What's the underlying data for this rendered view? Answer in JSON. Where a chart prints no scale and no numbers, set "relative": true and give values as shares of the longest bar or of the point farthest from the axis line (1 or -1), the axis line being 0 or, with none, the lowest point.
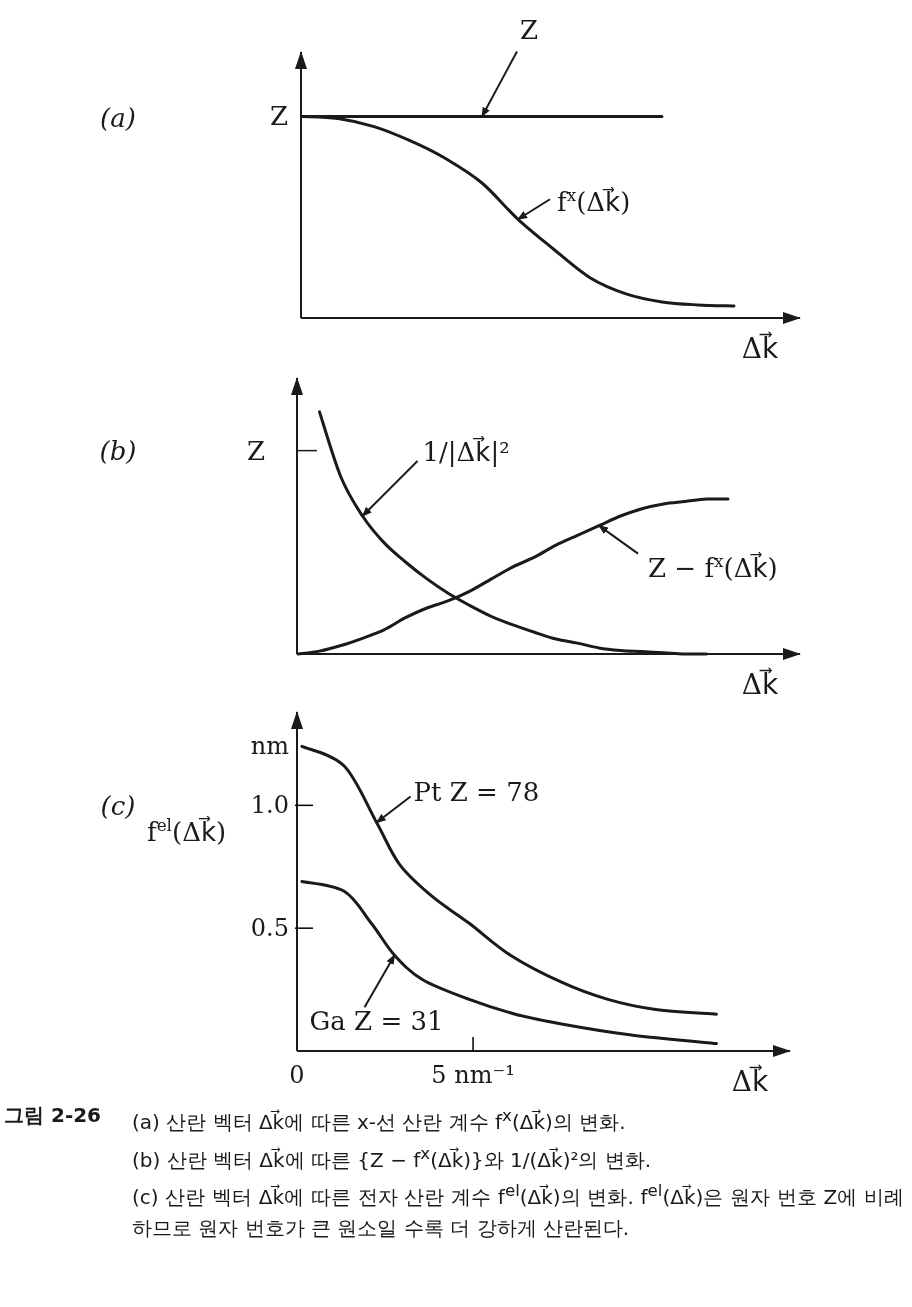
{
  "chart_data": [
    {
      "type": "line",
      "title": "(a)",
      "xlabel": "Δk⃗",
      "relative": true,
      "categories": [
        null,
        null,
        null,
        null,
        null,
        null,
        null,
        null,
        null,
        null,
        null,
        null,
        null
      ],
      "marker": "none",
      "line_style": "solid",
      "series": [
        {
          "name": "Z",
          "color": "#1a1a1a",
          "values": [
            1,
            1,
            1,
            1,
            1,
            1,
            1,
            1,
            1,
            1,
            1,
            null,
            null
          ]
        },
        {
          "name": "f$^{x}$(Δk⃗)",
          "color": "#1a1a1a",
          "values": [
            1.0,
            0.99,
            0.95,
            0.88,
            0.79,
            0.67,
            0.49,
            0.34,
            0.2,
            0.12,
            0.08,
            0.065,
            0.06
          ]
        }
      ],
      "annotations": [
        "Z"
      ]
    },
    {
      "type": "line",
      "title": "(b)",
      "xlabel": "Δk⃗",
      "relative": true,
      "categories": [
        null,
        null,
        null,
        null,
        null,
        null,
        null,
        null,
        null,
        null,
        null,
        null,
        null,
        null,
        null,
        null,
        null,
        null,
        null,
        null,
        null
      ],
      "marker": "none",
      "line_style": "solid",
      "series": [
        {
          "name": "1/|Δk⃗|²",
          "color": "#1a1a1a",
          "values": [
            null,
            1.0,
            0.73,
            0.57,
            0.46,
            0.38,
            0.31,
            0.25,
            0.2,
            0.155,
            0.12,
            0.09,
            0.062,
            0.045,
            0.025,
            0.015,
            0.01,
            0.005,
            0.0,
            0.0,
            null
          ]
        },
        {
          "name": "Z − f$^{x}$(Δk⃗)",
          "color": "#1a1a1a",
          "values": [
            0.0,
            0.012,
            0.035,
            0.065,
            0.1,
            0.15,
            0.19,
            0.22,
            0.26,
            0.31,
            0.36,
            0.4,
            0.45,
            0.49,
            0.53,
            0.57,
            0.6,
            0.62,
            0.63,
            0.64,
            0.64
          ]
        }
      ],
      "annotations": [
        "Z"
      ]
    },
    {
      "type": "line",
      "title": "(c)",
      "xlabel": "Δk⃗",
      "ylabel": "f$^{el}$(Δk⃗)",
      "xlim": [
        0,
        14
      ],
      "xticks": [
        0,
        {
          "value": 5,
          "label": "5 nm⁻¹"
        }
      ],
      "ylim": [
        0,
        1.38
      ],
      "yticks": [
        {
          "value": 0.5,
          "label": "0.5"
        },
        {
          "value": 1,
          "label": "1.0"
        },
        {
          "value": 1.24,
          "label": "nm"
        }
      ],
      "grid": false,
      "marker": "none",
      "line_style": "solid",
      "series": [
        {
          "name": "Pt Z = 78",
          "color": "#1a1a1a",
          "x": [
            0.14,
            1.34,
            2.26,
            2.91,
            3.83,
            4.89,
            6.06,
            7.51,
            8.83,
            10.14,
            11.91
          ],
          "values": [
            1.24,
            1.16,
            0.93,
            0.76,
            0.63,
            0.52,
            0.39,
            0.28,
            0.21,
            0.17,
            0.15
          ]
        },
        {
          "name": "Ga Z = 31",
          "color": "#1a1a1a",
          "x": [
            0.14,
            1.34,
            2.11,
            2.77,
            3.57,
            4.89,
            6.2,
            7.51,
            9.49,
            11.91
          ],
          "values": [
            0.69,
            0.65,
            0.52,
            0.39,
            0.29,
            0.21,
            0.15,
            0.11,
            0.065,
            0.03
          ]
        }
      ],
      "annotations": [
        "그림 2-26",
        "(a) 산란 벡터 Δk⃗에 따른 x-선 산란 계수 f$^{x}$(Δk⃗)의 변화.",
        "(b) 산란 벡터 Δk⃗에 따른 {Z − f$^{x}$(Δk⃗)}와 1/(Δk⃗)²의 변화.",
        "(c) 산란 벡터 Δk⃗에 따른 전자 산란 계수 f$^{el}$(Δk⃗)의 변화. f$^{el}$(Δk⃗)은 원자 번호 Z에 비례하므로 원자 번호가 큰 원소일 수록 더 강하게 산란된다."
      ]
    }
  ]
}
